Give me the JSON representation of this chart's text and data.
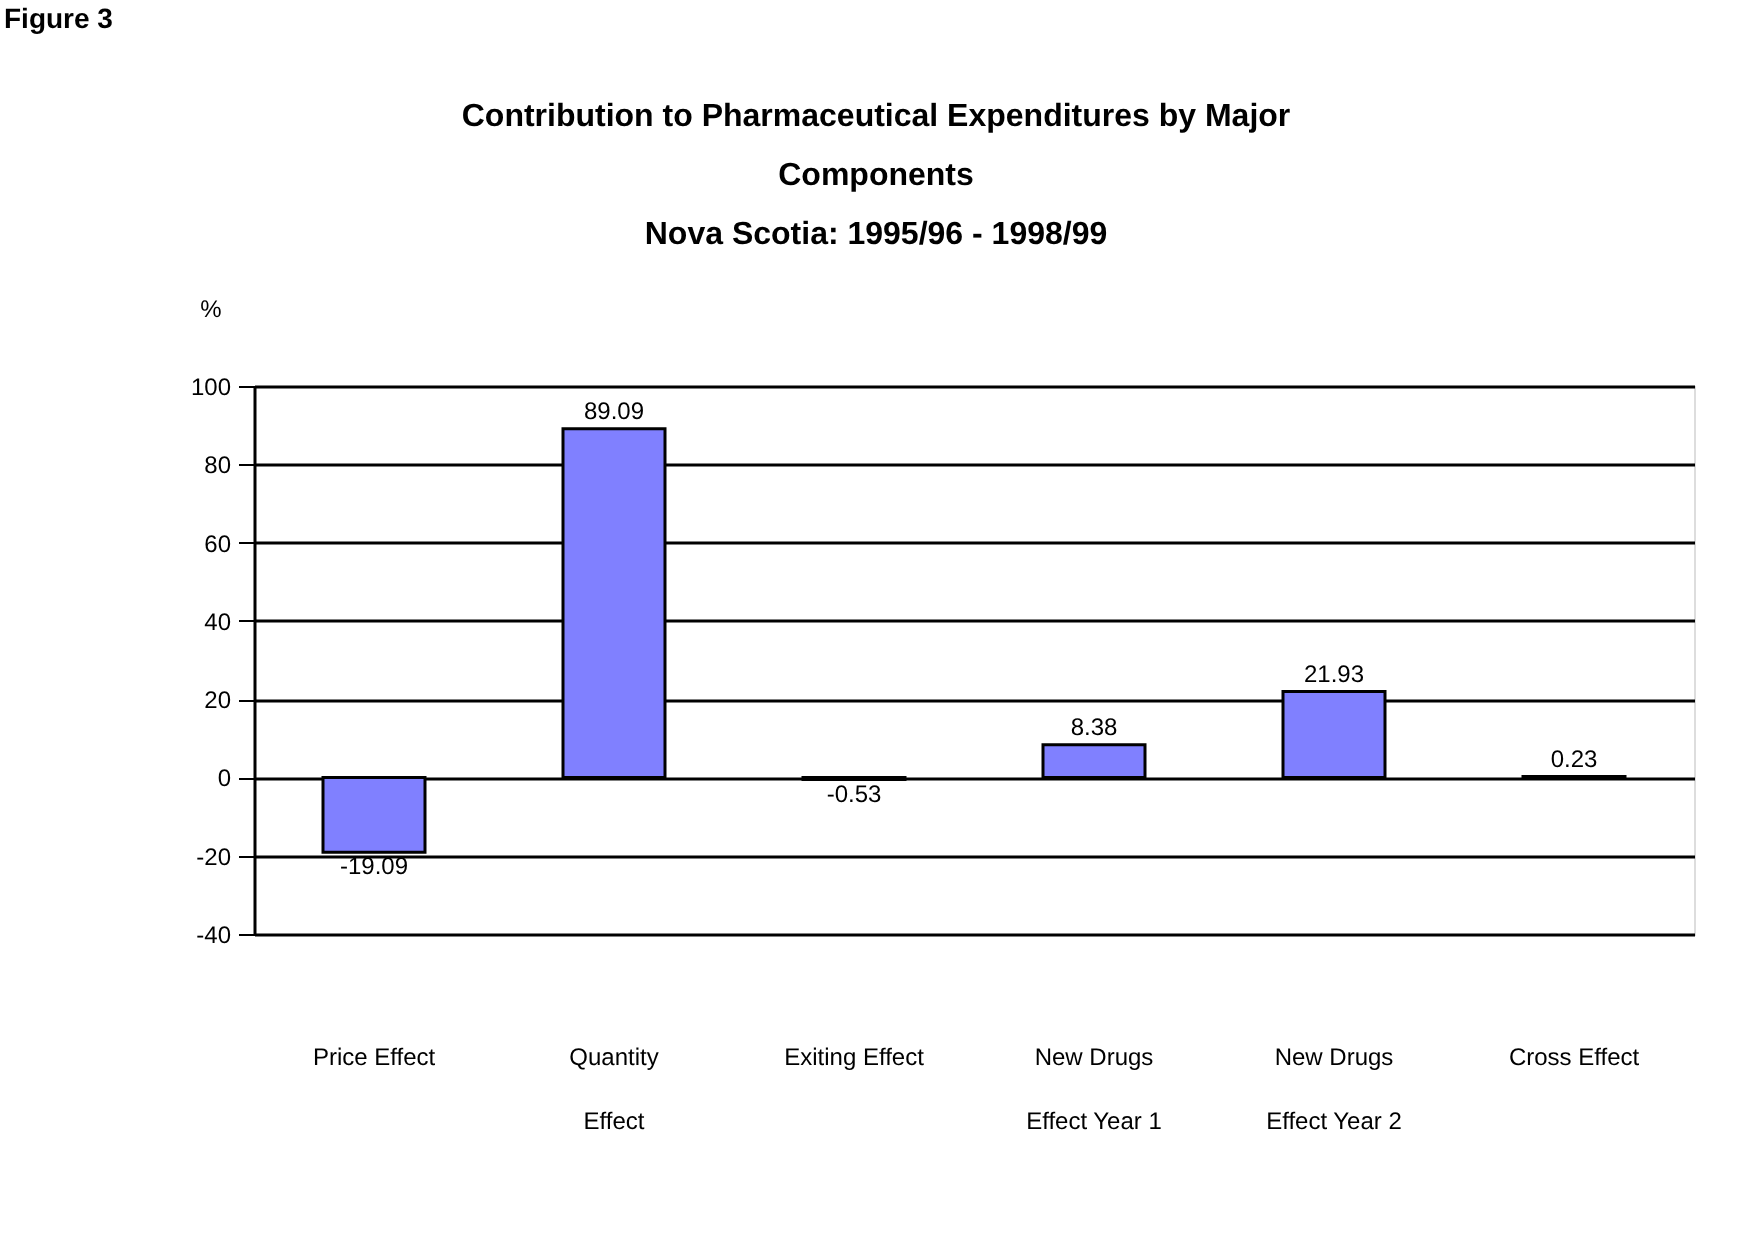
{
  "chart_data": {
    "type": "bar",
    "title": "Contribution to Pharmaceutical Expenditures by Major Components",
    "subtitle": "Nova Scotia: 1995/96 - 1998/99",
    "ylabel": "%",
    "categories": [
      "Price Effect",
      "Quantity Effect",
      "Exiting Effect",
      "New Drugs Effect Year 1",
      "New Drugs Effect Year 2",
      "Cross Effect"
    ],
    "values": [
      -19.09,
      89.09,
      -0.53,
      8.38,
      21.93,
      0.23
    ],
    "color": "#8080ff",
    "ylim": [
      -40,
      100
    ],
    "yticks": [
      -40,
      -20,
      0,
      20,
      40,
      60,
      80,
      100
    ],
    "grid": "y",
    "data_labels": true,
    "annotations": [
      "Figure 3"
    ]
  }
}
